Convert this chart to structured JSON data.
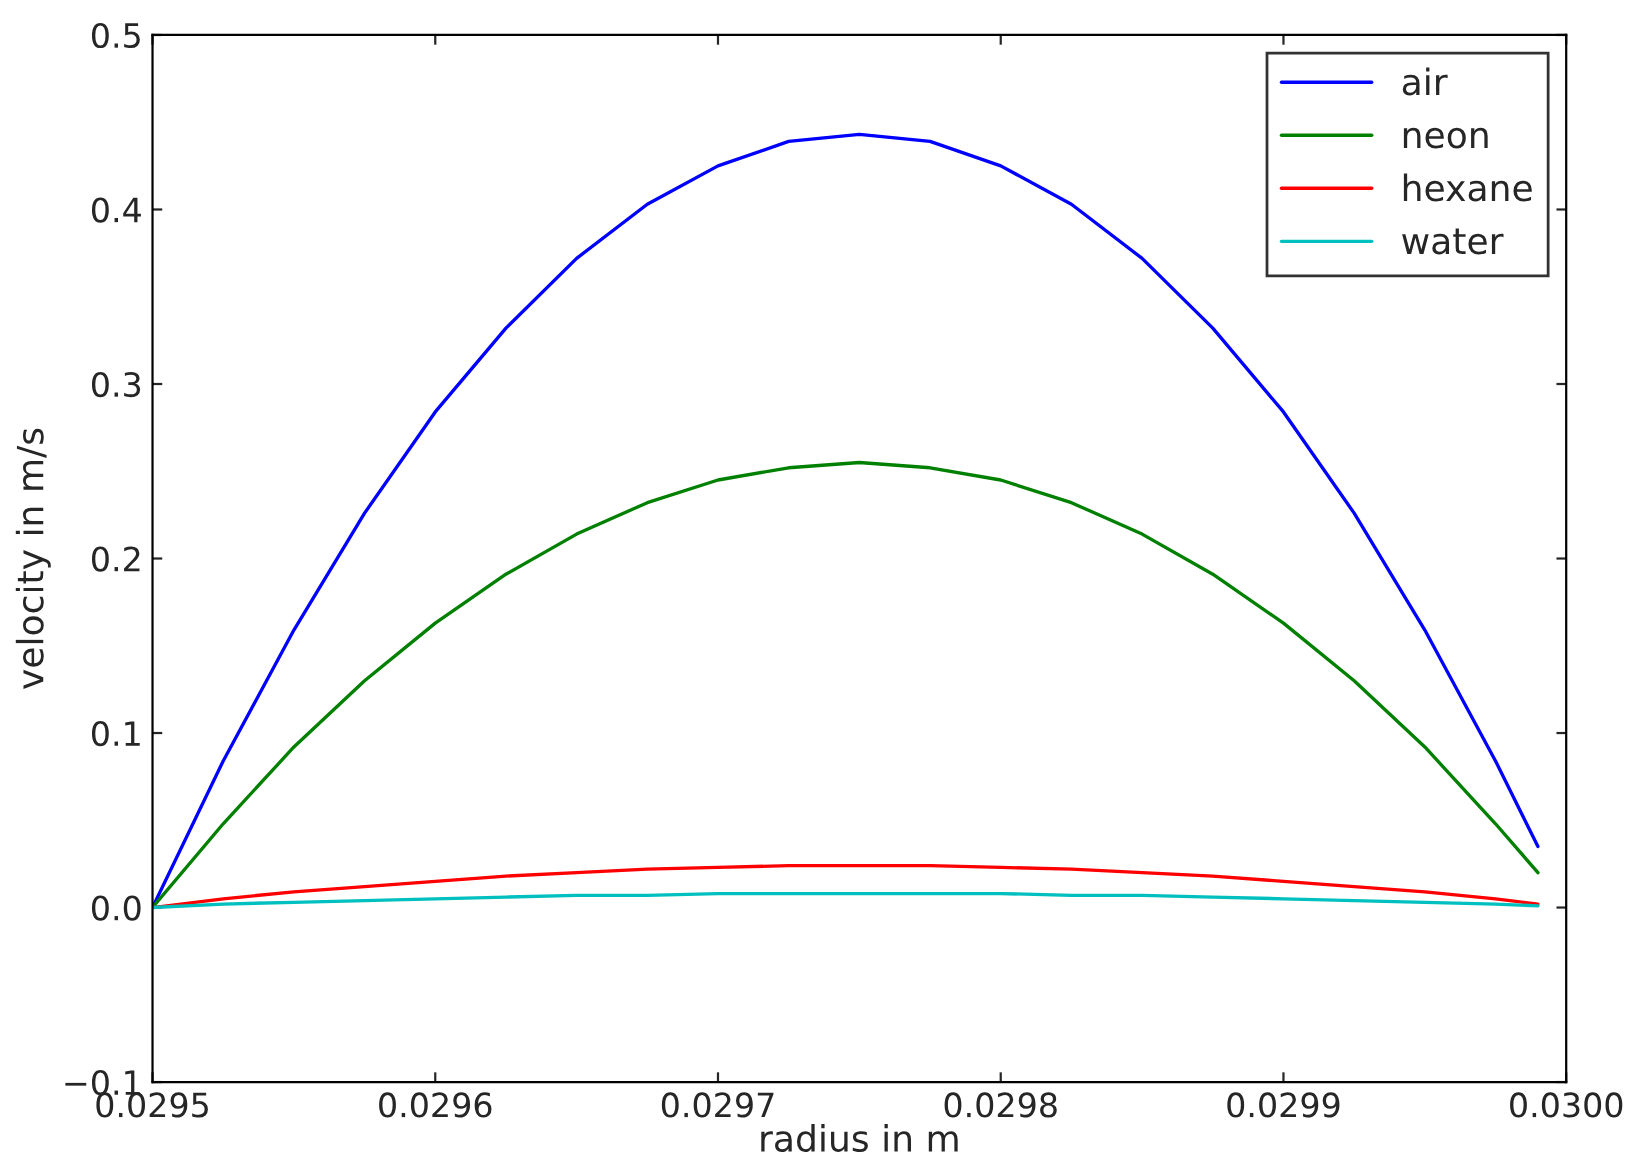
{
  "chart_data": {
    "type": "line",
    "xlabel": "radius in m",
    "ylabel": "velocity in m/s",
    "x": [
      0.0295,
      0.029525,
      0.02955,
      0.029575,
      0.0296,
      0.029625,
      0.02965,
      0.029675,
      0.0297,
      0.029725,
      0.02975,
      0.029775,
      0.0298,
      0.029825,
      0.02985,
      0.029875,
      0.0299,
      0.029925,
      0.02995,
      0.029975,
      0.02999
    ],
    "series": [
      {
        "name": "air",
        "color": "#0000ff",
        "values": [
          0,
          0.084,
          0.159,
          0.226,
          0.284,
          0.332,
          0.372,
          0.403,
          0.425,
          0.439,
          0.443,
          0.439,
          0.425,
          0.403,
          0.372,
          0.332,
          0.284,
          0.226,
          0.159,
          0.084,
          0.035
        ]
      },
      {
        "name": "neon",
        "color": "#008000",
        "values": [
          0,
          0.048,
          0.092,
          0.13,
          0.163,
          0.191,
          0.214,
          0.232,
          0.245,
          0.252,
          0.255,
          0.252,
          0.245,
          0.232,
          0.214,
          0.191,
          0.163,
          0.13,
          0.092,
          0.048,
          0.02
        ]
      },
      {
        "name": "hexane",
        "color": "#ff0000",
        "values": [
          0,
          0.005,
          0.009,
          0.012,
          0.015,
          0.018,
          0.02,
          0.022,
          0.023,
          0.024,
          0.024,
          0.024,
          0.023,
          0.022,
          0.02,
          0.018,
          0.015,
          0.012,
          0.009,
          0.005,
          0.002
        ]
      },
      {
        "name": "water",
        "color": "#00bfbf",
        "values": [
          0,
          0.002,
          0.003,
          0.004,
          0.005,
          0.006,
          0.007,
          0.007,
          0.008,
          0.008,
          0.008,
          0.008,
          0.008,
          0.007,
          0.007,
          0.006,
          0.005,
          0.004,
          0.003,
          0.002,
          0.001
        ]
      }
    ],
    "xlim": [
      0.0295,
      0.03
    ],
    "xticks": [
      0.0295,
      0.0296,
      0.0297,
      0.0298,
      0.0299,
      {
        "value": 0.03,
        "label": "0.0300"
      }
    ],
    "ylim": [
      -0.1,
      0.5
    ],
    "yticks": [
      {
        "value": -0.1,
        "label": "−0.1"
      },
      {
        "value": 0,
        "label": "0.0"
      },
      0.1,
      0.2,
      0.3,
      0.4,
      0.5
    ],
    "grid": false,
    "legend": "top right",
    "marker": "none",
    "line_style": "solid"
  }
}
